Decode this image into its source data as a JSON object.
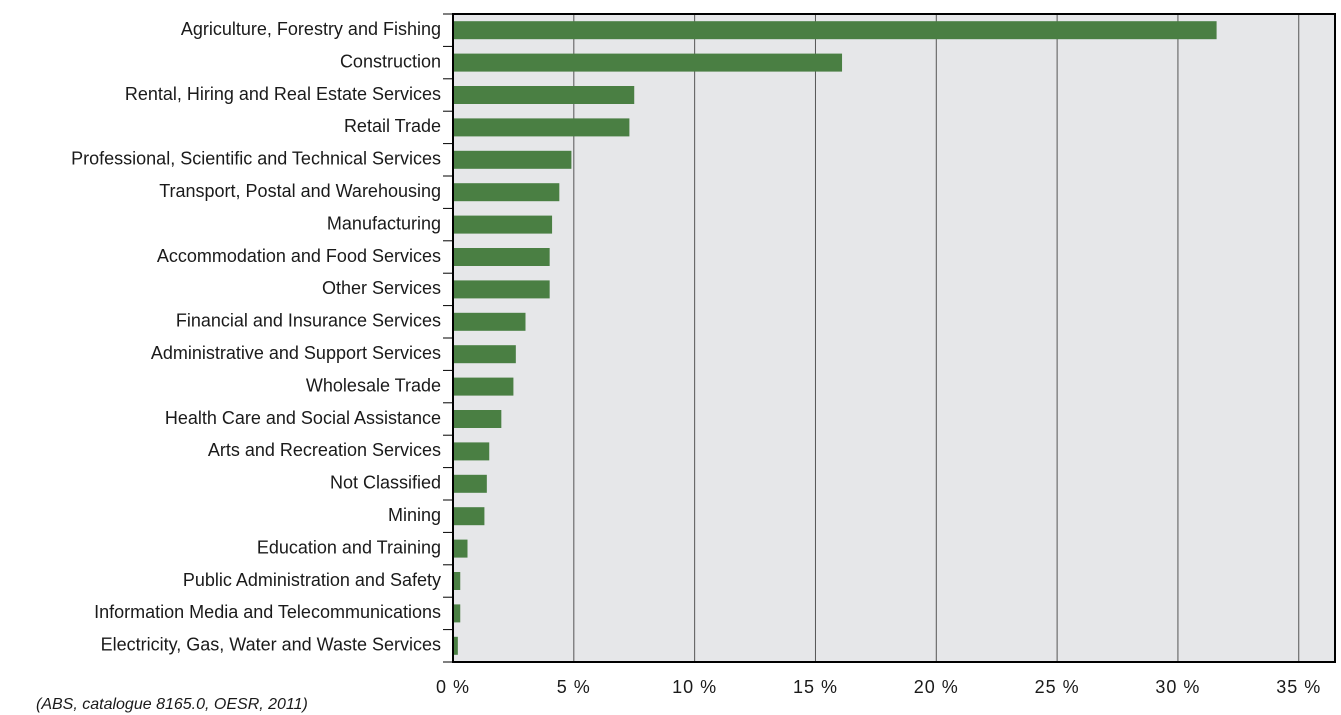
{
  "source_note": "(ABS, catalogue 8165.0, OESR, 2011)",
  "colors": {
    "bar": "#4a7f43",
    "plot_background": "#e6e7e9",
    "gridline": "#555555",
    "axis": "#000000"
  },
  "chart_data": {
    "type": "bar",
    "orientation": "horizontal",
    "title": "",
    "xlabel": "",
    "ylabel": "",
    "categories": [
      "Agriculture, Forestry and Fishing",
      "Construction",
      "Rental, Hiring and Real Estate Services",
      "Retail Trade",
      "Professional, Scientific and Technical Services",
      "Transport, Postal and Warehousing",
      "Manufacturing",
      "Accommodation and Food Services",
      "Other Services",
      "Financial and Insurance Services",
      "Administrative and Support Services",
      "Wholesale Trade",
      "Health Care and Social Assistance",
      "Arts and Recreation Services",
      "Not Classified",
      "Mining",
      "Education and Training",
      "Public Administration and Safety",
      "Information Media and Telecommunications",
      "Electricity, Gas, Water and Waste Services"
    ],
    "values": [
      31.6,
      16.1,
      7.5,
      7.3,
      4.9,
      4.4,
      4.1,
      4.0,
      4.0,
      3.0,
      2.6,
      2.5,
      2.0,
      1.5,
      1.4,
      1.3,
      0.6,
      0.3,
      0.3,
      0.2
    ],
    "xlim": [
      0,
      36.5
    ],
    "xticks": [
      0,
      5,
      10,
      15,
      20,
      25,
      30,
      35
    ],
    "xtick_labels": [
      "0 %",
      "5 %",
      "10 %",
      "15 %",
      "20 %",
      "25 %",
      "30 %",
      "35 %"
    ],
    "grid": "vertical",
    "legend": "none"
  }
}
